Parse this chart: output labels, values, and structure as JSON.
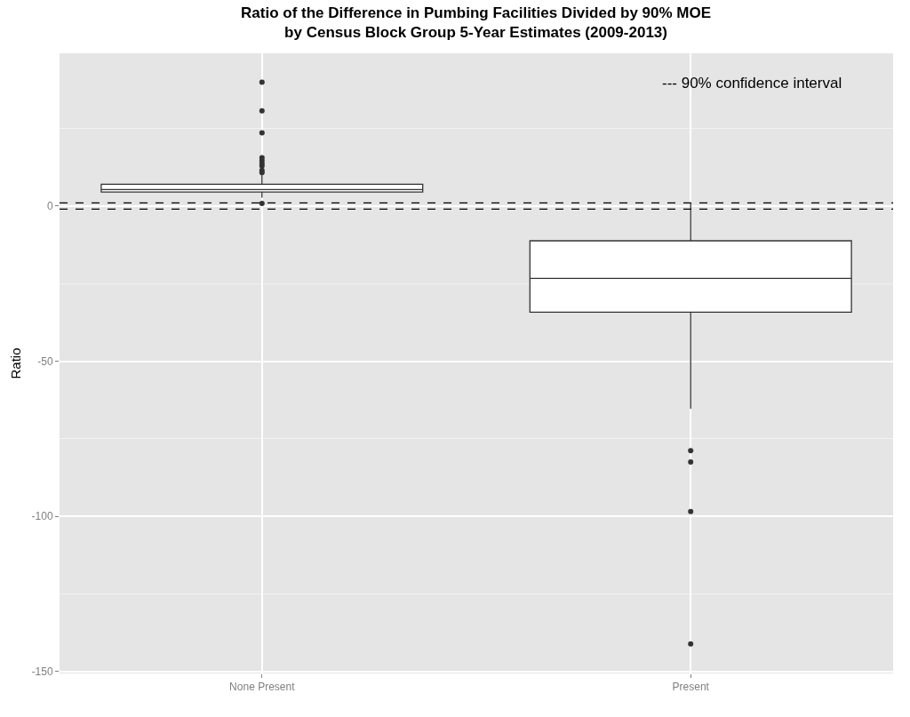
{
  "chart_data": {
    "type": "box",
    "title": "Ratio of the Difference in Pumbing Facilities Divided by 90% MOE\nby Census Block Group 5-Year Estimates (2009-2013)",
    "ylabel": "Ratio",
    "categories": [
      "None Present",
      "Present"
    ],
    "series": [
      {
        "color": "#333333",
        "boxes": [
          {
            "low": 2.7,
            "q1": 4.5,
            "median": 5.3,
            "q3": 7.0,
            "high": 10.5,
            "outliers": [
              39.9,
              30.7,
              23.6,
              15.6,
              14.6,
              13.7,
              12.9,
              11.5,
              10.8,
              0.8
            ]
          },
          {
            "low": -65.3,
            "q1": -34.2,
            "median": -23.3,
            "q3": -11.2,
            "high": 0.8,
            "outliers": [
              -78.8,
              -82.5,
              -98.4,
              -141.1
            ]
          }
        ]
      }
    ],
    "ylim": [
      -150.6,
      49.2
    ],
    "yticks": [
      -150,
      -100,
      -50,
      0
    ],
    "grid": true,
    "ref_lines": [
      {
        "axis": "y",
        "value": 1,
        "color": "#000000",
        "line_style": "dashed"
      },
      {
        "axis": "y",
        "value": -1,
        "color": "#000000",
        "line_style": "dashed"
      }
    ],
    "annotations": [
      "--- 90% confidence interval"
    ]
  }
}
